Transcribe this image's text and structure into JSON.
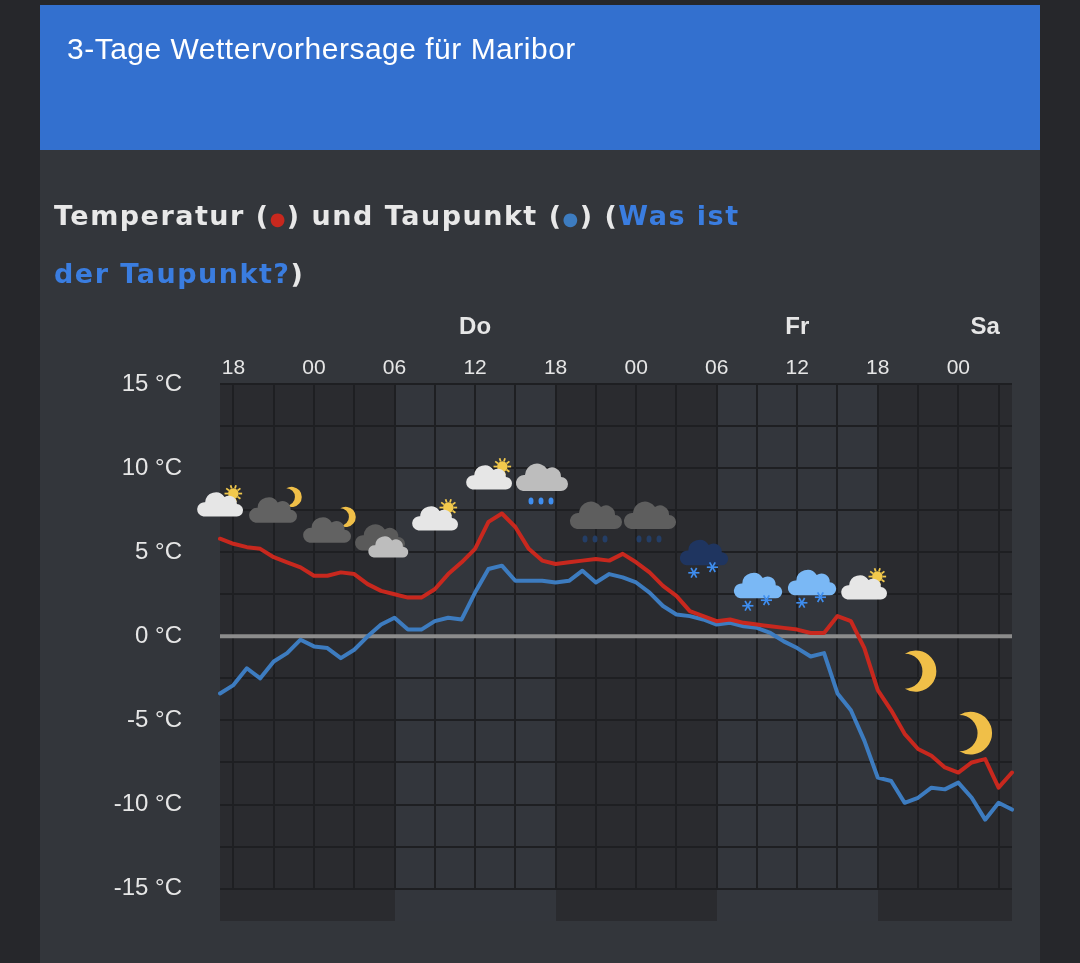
{
  "chart_data": {
    "type": "line",
    "title": "3-Tage Wettervorhersage für Maribor",
    "subtitle": "Temperatur (●) und Taupunkt (●) (Was ist der Taupunkt?)",
    "categories": [
      null,
      "18",
      null,
      null,
      null,
      null,
      null,
      "00",
      null,
      null,
      null,
      null,
      null,
      "06",
      null,
      null,
      null,
      null,
      null,
      "Do\n12",
      null,
      null,
      null,
      null,
      null,
      "18",
      null,
      null,
      null,
      null,
      null,
      "00",
      null,
      null,
      null,
      null,
      null,
      "06",
      null,
      null,
      null,
      null,
      null,
      "Fr\n12",
      null,
      null,
      null,
      null,
      null,
      "18",
      null,
      null,
      null,
      null,
      null,
      "00",
      null,
      "Sa\n",
      null,
      null
    ],
    "series": [
      {
        "color": "#c8281e",
        "values": [
          5.8,
          5.5,
          5.3,
          5.2,
          4.7,
          4.4,
          4.1,
          3.6,
          3.6,
          3.8,
          3.7,
          3.1,
          2.7,
          2.5,
          2.3,
          2.3,
          2.8,
          3.7,
          4.4,
          5.2,
          6.8,
          7.3,
          6.5,
          5.2,
          4.5,
          4.3,
          4.4,
          4.5,
          4.6,
          4.5,
          4.9,
          4.4,
          3.8,
          3.0,
          2.4,
          1.5,
          1.2,
          0.9,
          1.0,
          0.8,
          0.7,
          0.6,
          0.5,
          0.4,
          0.2,
          0.2,
          1.2,
          0.9,
          -0.7,
          -3.2,
          -4.4,
          -5.8,
          -6.7,
          -7.1,
          -7.8,
          -8.1,
          -7.5,
          -7.3,
          -9.0,
          -8.1
        ]
      },
      {
        "color": "#3d7cc0",
        "values": [
          -3.4,
          -2.9,
          -1.9,
          -2.5,
          -1.5,
          -1.0,
          -0.2,
          -0.6,
          -0.7,
          -1.3,
          -0.8,
          0.0,
          0.7,
          1.1,
          0.4,
          0.4,
          0.9,
          1.1,
          1.0,
          2.6,
          4.0,
          4.2,
          3.3,
          3.3,
          3.3,
          3.2,
          3.3,
          3.9,
          3.2,
          3.7,
          3.5,
          3.2,
          2.6,
          1.8,
          1.3,
          1.2,
          1.0,
          0.7,
          0.8,
          0.6,
          0.5,
          0.2,
          -0.3,
          -0.7,
          -1.2,
          -1.0,
          -3.4,
          -4.4,
          -6.2,
          -8.4,
          -8.6,
          -9.9,
          -9.6,
          -9.0,
          -9.1,
          -8.7,
          -9.6,
          -10.9,
          -9.9,
          -10.3
        ]
      }
    ],
    "ylim": [
      -15,
      15
    ],
    "yticks": [
      {
        "value": -15,
        "label": "-15 °C"
      },
      {
        "value": -12.5,
        "label": null
      },
      {
        "value": -10,
        "label": "-10 °C"
      },
      {
        "value": -7.5,
        "label": null
      },
      {
        "value": -5,
        "label": "-5 °C"
      },
      {
        "value": -2.5,
        "label": null
      },
      {
        "value": 0,
        "label": "0 °C"
      },
      {
        "value": 2.5,
        "label": null
      },
      {
        "value": 5,
        "label": "5 °C"
      },
      {
        "value": 7.5,
        "label": null
      },
      {
        "value": 10,
        "label": "10 °C"
      },
      {
        "value": 12.5,
        "label": null
      },
      {
        "value": 15,
        "label": "15 °C"
      }
    ],
    "ref_lines": [
      {
        "axis": "y",
        "value": 0,
        "color": "#8c8c8c"
      }
    ],
    "grid": true,
    "marker": "none",
    "line_style": "solid"
  }
}
